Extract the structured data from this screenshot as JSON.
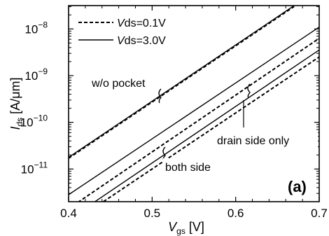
{
  "chart_data": {
    "type": "line",
    "xlabel": {
      "main": "V",
      "sub": "gs",
      "unit": " [V]"
    },
    "ylabel": {
      "main": "I",
      "sub": "ds",
      "unit": " [A/μm]"
    },
    "xlim": [
      0.4,
      0.7
    ],
    "ylim_log10": [
      -11.7,
      -7.5
    ],
    "yscale": "log",
    "grid": false,
    "xticks": [
      0.4,
      0.5,
      0.6,
      0.7
    ],
    "xtick_labels": [
      "0.4",
      "0.5",
      "0.6",
      "0.7"
    ],
    "yticks": [
      {
        "exp": -8,
        "base": "10",
        "sup": "−8"
      },
      {
        "exp": -9,
        "base": "10",
        "sup": "−9"
      },
      {
        "exp": -10,
        "base": "10",
        "sup": "−10"
      },
      {
        "exp": -11,
        "base": "10",
        "sup": "−11"
      }
    ],
    "legend": {
      "placement": "top-left",
      "entries": [
        {
          "style": "dashed",
          "italic": "V",
          "text": "ds=0.1V"
        },
        {
          "style": "solid",
          "italic": "V",
          "text": "ds=3.0V"
        }
      ]
    },
    "series": [
      {
        "group": "w/o pocket",
        "vds": "3.0V",
        "style": "solid",
        "points": [
          [
            0.4,
            -10.75
          ],
          [
            0.67,
            -7.5
          ]
        ]
      },
      {
        "group": "w/o pocket",
        "vds": "0.1V",
        "style": "dashed",
        "points": [
          [
            0.4,
            -10.77
          ],
          [
            0.67,
            -7.52
          ]
        ]
      },
      {
        "group": "drain side only",
        "vds": "3.0V",
        "style": "solid",
        "points": [
          [
            0.4,
            -11.55
          ],
          [
            0.7,
            -7.96
          ]
        ]
      },
      {
        "group": "drain side only",
        "vds": "0.1V",
        "style": "dashed",
        "points": [
          [
            0.4,
            -11.85
          ],
          [
            0.7,
            -8.2
          ]
        ]
      },
      {
        "group": "both side",
        "vds": "3.0V",
        "style": "solid",
        "points": [
          [
            0.415,
            -11.9
          ],
          [
            0.7,
            -8.45
          ]
        ]
      },
      {
        "group": "both side",
        "vds": "0.1V",
        "style": "dashed",
        "points": [
          [
            0.425,
            -11.9
          ],
          [
            0.7,
            -8.6
          ]
        ]
      }
    ],
    "annotations": [
      {
        "text": "w/o pocket",
        "x": 0.45,
        "y_log10": -9.15
      },
      {
        "text": "drain side only",
        "x": 0.59,
        "y_log10": -10.55
      },
      {
        "text": "both side",
        "x": 0.455,
        "y_log10": -11.3
      },
      {
        "text": "(a)",
        "x": 0.655,
        "y_log10": -11.5
      }
    ]
  }
}
